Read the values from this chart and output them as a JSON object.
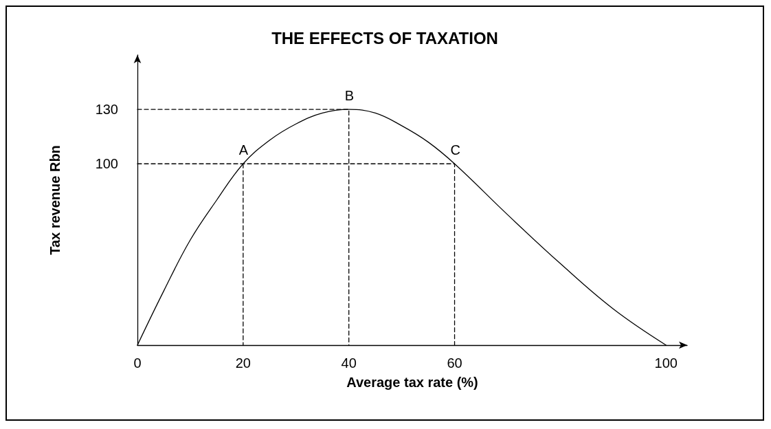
{
  "chart_data": {
    "type": "line",
    "title": "THE EFFECTS OF TAXATION",
    "xlabel": "Average tax rate (%)",
    "ylabel": "Tax revenue Rbn",
    "xlim": [
      0,
      104
    ],
    "ylim": [
      0,
      160
    ],
    "xticks": [
      0,
      20,
      40,
      60,
      100
    ],
    "yticks": [
      100,
      130
    ],
    "grid": false,
    "marker": "none",
    "series": [
      {
        "color": "#000000",
        "line_style": "solid",
        "x": [
          0,
          5,
          10,
          15,
          20,
          25,
          30,
          35,
          40,
          45,
          50,
          55,
          60,
          70,
          80,
          90,
          100
        ],
        "values": [
          0,
          30,
          58,
          80,
          100,
          113,
          122,
          128,
          130,
          128,
          121,
          112,
          100,
          72,
          45,
          20,
          0
        ]
      },
      {
        "color": "#000000",
        "line_style": "dashed",
        "x": [
          0,
          60,
          60
        ],
        "values": [
          100,
          100,
          0
        ]
      },
      {
        "color": "#000000",
        "line_style": "dashed",
        "x": [
          20,
          20
        ],
        "values": [
          100,
          0
        ]
      },
      {
        "color": "#000000",
        "line_style": "dashed",
        "x": [
          0,
          40,
          40
        ],
        "values": [
          130,
          130,
          0
        ]
      }
    ],
    "annotations": [
      {
        "text": "A",
        "x": 20,
        "y": 100
      },
      {
        "text": "B",
        "x": 40,
        "y": 130
      },
      {
        "text": "C",
        "x": 60,
        "y": 100
      }
    ]
  }
}
